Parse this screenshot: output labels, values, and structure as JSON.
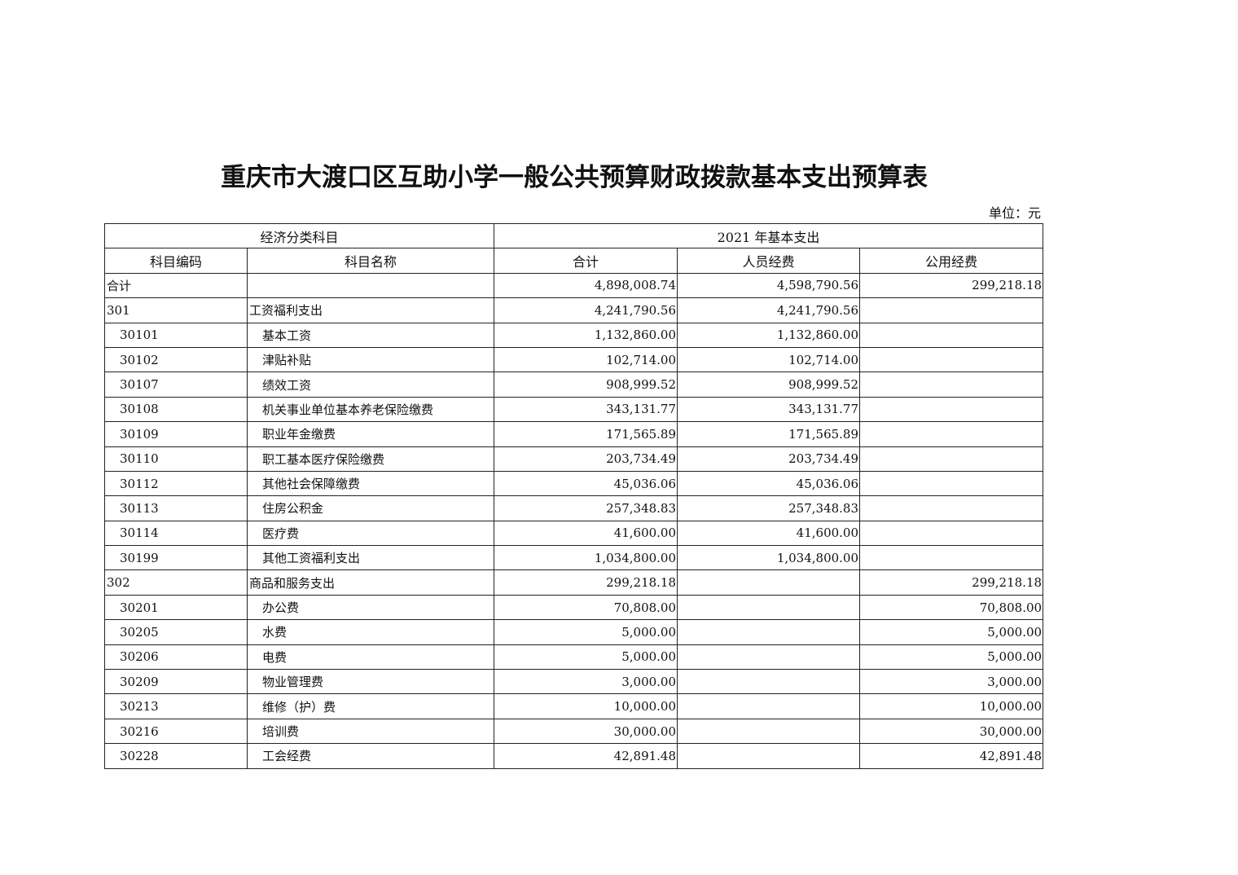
{
  "title": "重庆市大渡口区互助小学一般公共预算财政拨款基本支出预算表",
  "unit": "单位：元",
  "header": {
    "group1": "经济分类科目",
    "group2": "2021 年基本支出",
    "columns": [
      "科目编码",
      "科目名称",
      "合计",
      "人员经费",
      "公用经费"
    ]
  },
  "rows": [
    {
      "code": "合计",
      "name": "",
      "total": "4,898,008.74",
      "personnel": "4,598,790.56",
      "public": "299,218.18",
      "level": 0
    },
    {
      "code": "301",
      "name": "工资福利支出",
      "total": "4,241,790.56",
      "personnel": "4,241,790.56",
      "public": "",
      "level": 0
    },
    {
      "code": "30101",
      "name": "基本工资",
      "total": "1,132,860.00",
      "personnel": "1,132,860.00",
      "public": "",
      "level": 1
    },
    {
      "code": "30102",
      "name": "津贴补贴",
      "total": "102,714.00",
      "personnel": "102,714.00",
      "public": "",
      "level": 1
    },
    {
      "code": "30107",
      "name": "绩效工资",
      "total": "908,999.52",
      "personnel": "908,999.52",
      "public": "",
      "level": 1
    },
    {
      "code": "30108",
      "name": "机关事业单位基本养老保险缴费",
      "total": "343,131.77",
      "personnel": "343,131.77",
      "public": "",
      "level": 1
    },
    {
      "code": "30109",
      "name": "职业年金缴费",
      "total": "171,565.89",
      "personnel": "171,565.89",
      "public": "",
      "level": 1
    },
    {
      "code": "30110",
      "name": "职工基本医疗保险缴费",
      "total": "203,734.49",
      "personnel": "203,734.49",
      "public": "",
      "level": 1
    },
    {
      "code": "30112",
      "name": "其他社会保障缴费",
      "total": "45,036.06",
      "personnel": "45,036.06",
      "public": "",
      "level": 1
    },
    {
      "code": "30113",
      "name": "住房公积金",
      "total": "257,348.83",
      "personnel": "257,348.83",
      "public": "",
      "level": 1
    },
    {
      "code": "30114",
      "name": "医疗费",
      "total": "41,600.00",
      "personnel": "41,600.00",
      "public": "",
      "level": 1
    },
    {
      "code": "30199",
      "name": "其他工资福利支出",
      "total": "1,034,800.00",
      "personnel": "1,034,800.00",
      "public": "",
      "level": 1
    },
    {
      "code": "302",
      "name": "商品和服务支出",
      "total": "299,218.18",
      "personnel": "",
      "public": "299,218.18",
      "level": 0
    },
    {
      "code": "30201",
      "name": "办公费",
      "total": "70,808.00",
      "personnel": "",
      "public": "70,808.00",
      "level": 1
    },
    {
      "code": "30205",
      "name": "水费",
      "total": "5,000.00",
      "personnel": "",
      "public": "5,000.00",
      "level": 1
    },
    {
      "code": "30206",
      "name": "电费",
      "total": "5,000.00",
      "personnel": "",
      "public": "5,000.00",
      "level": 1
    },
    {
      "code": "30209",
      "name": "物业管理费",
      "total": "3,000.00",
      "personnel": "",
      "public": "3,000.00",
      "level": 1
    },
    {
      "code": "30213",
      "name": "维修（护）费",
      "total": "10,000.00",
      "personnel": "",
      "public": "10,000.00",
      "level": 1
    },
    {
      "code": "30216",
      "name": "培训费",
      "total": "30,000.00",
      "personnel": "",
      "public": "30,000.00",
      "level": 1
    },
    {
      "code": "30228",
      "name": "工会经费",
      "total": "42,891.48",
      "personnel": "",
      "public": "42,891.48",
      "level": 1
    }
  ]
}
